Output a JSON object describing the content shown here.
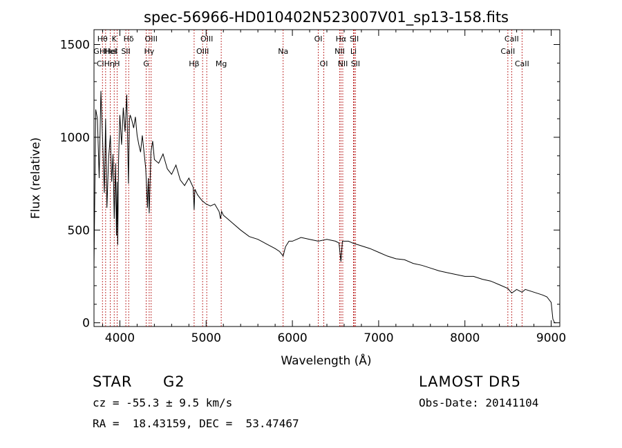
{
  "footer": {
    "object_class": "STAR",
    "subclass": "G2",
    "survey": "LAMOST DR5",
    "cz": "cz = -55.3 ± 9.5 km/s",
    "obs_date": "Obs-Date: 20141104",
    "coords": "RA =  18.43159, DEC =  53.47467"
  },
  "colors": {
    "spectrum": "#000000",
    "line_markers": "#b00000",
    "text": "#000000"
  },
  "chart_data": {
    "type": "line",
    "title": "spec-56966-HD010402N523007V01_sp13-158.fits",
    "xlabel": "Wavelength (Å)",
    "ylabel": "Flux (relative)",
    "xlim": [
      3700,
      9100
    ],
    "ylim": [
      -20,
      1580
    ],
    "xticks": [
      4000,
      5000,
      6000,
      7000,
      8000,
      9000
    ],
    "yticks": [
      0,
      500,
      1000,
      1500
    ],
    "grid": false,
    "legend": "none",
    "series": [
      {
        "x": [
          3700,
          3720,
          3740,
          3760,
          3780,
          3800,
          3820,
          3835,
          3850,
          3870,
          3890,
          3905,
          3920,
          3935,
          3950,
          3960,
          3968,
          3975,
          3985,
          4000,
          4020,
          4040,
          4060,
          4080,
          4100,
          4110,
          4120,
          4140,
          4160,
          4180,
          4200,
          4220,
          4240,
          4260,
          4280,
          4300,
          4320,
          4330,
          4340,
          4360,
          4380,
          4400,
          4450,
          4500,
          4550,
          4600,
          4650,
          4700,
          4750,
          4800,
          4850,
          4861,
          4870,
          4900,
          4950,
          5000,
          5050,
          5100,
          5150,
          5167,
          5180,
          5200,
          5250,
          5300,
          5400,
          5500,
          5600,
          5700,
          5800,
          5850,
          5893,
          5920,
          5960,
          6000,
          6100,
          6200,
          6300,
          6400,
          6500,
          6540,
          6563,
          6580,
          6650,
          6700,
          6800,
          6900,
          7000,
          7100,
          7200,
          7300,
          7400,
          7500,
          7600,
          7700,
          7800,
          7900,
          8000,
          8100,
          8200,
          8300,
          8400,
          8498,
          8542,
          8600,
          8662,
          8700,
          8800,
          8900,
          8950,
          9000,
          9020,
          9040,
          9060
        ],
        "y": [
          300,
          1150,
          1100,
          780,
          1250,
          980,
          700,
          1100,
          620,
          890,
          1010,
          760,
          910,
          560,
          860,
          470,
          760,
          420,
          880,
          1120,
          960,
          1160,
          1030,
          1230,
          750,
          1090,
          1120,
          1090,
          1050,
          1110,
          1010,
          960,
          920,
          1010,
          920,
          830,
          620,
          780,
          590,
          920,
          980,
          880,
          860,
          910,
          830,
          800,
          850,
          770,
          740,
          780,
          730,
          610,
          720,
          690,
          660,
          640,
          630,
          640,
          600,
          560,
          600,
          580,
          560,
          540,
          500,
          465,
          450,
          425,
          400,
          385,
          360,
          410,
          440,
          440,
          460,
          450,
          440,
          450,
          440,
          430,
          330,
          440,
          440,
          430,
          415,
          400,
          380,
          360,
          345,
          340,
          320,
          310,
          295,
          280,
          270,
          260,
          250,
          250,
          235,
          225,
          205,
          185,
          160,
          180,
          165,
          180,
          165,
          150,
          140,
          110,
          20,
          0,
          0
        ]
      }
    ],
    "line_markers": [
      {
        "label": "Hθ",
        "wavelength": 3798,
        "row": 0
      },
      {
        "label": "GHHeI",
        "wavelength": 3835,
        "row": 1
      },
      {
        "label": "ClHη",
        "wavelength": 3835,
        "row": 2
      },
      {
        "label": "K",
        "wavelength": 3934,
        "row": 0
      },
      {
        "label": "HeI",
        "wavelength": 3889,
        "row": 1
      },
      {
        "label": "H",
        "wavelength": 3968,
        "row": 2
      },
      {
        "label": "Hδ",
        "wavelength": 4102,
        "row": 0
      },
      {
        "label": "SII",
        "wavelength": 4069,
        "row": 1
      },
      {
        "label": "OIII",
        "wavelength": 4363,
        "row": 0
      },
      {
        "label": "Hγ",
        "wavelength": 4340,
        "row": 1
      },
      {
        "label": "G",
        "wavelength": 4305,
        "row": 2
      },
      {
        "label": "Hβ",
        "wavelength": 4861,
        "row": 2
      },
      {
        "label": "OIII",
        "wavelength": 5007,
        "row": 0
      },
      {
        "label": "OIII",
        "wavelength": 4959,
        "row": 1
      },
      {
        "label": "Mg",
        "wavelength": 5175,
        "row": 2
      },
      {
        "label": "Na",
        "wavelength": 5893,
        "row": 1
      },
      {
        "label": "OI",
        "wavelength": 6300,
        "row": 0
      },
      {
        "label": "OI",
        "wavelength": 6364,
        "row": 2
      },
      {
        "label": "Hα",
        "wavelength": 6563,
        "row": 0
      },
      {
        "label": "NII",
        "wavelength": 6548,
        "row": 1
      },
      {
        "label": "NII",
        "wavelength": 6584,
        "row": 2
      },
      {
        "label": "SII",
        "wavelength": 6717,
        "row": 0
      },
      {
        "label": "Li",
        "wavelength": 6708,
        "row": 1
      },
      {
        "label": "SII",
        "wavelength": 6731,
        "row": 2
      },
      {
        "label": "CaII",
        "wavelength": 8542,
        "row": 0
      },
      {
        "label": "CaII",
        "wavelength": 8498,
        "row": 1
      },
      {
        "label": "CaII",
        "wavelength": 8662,
        "row": 2
      }
    ]
  }
}
